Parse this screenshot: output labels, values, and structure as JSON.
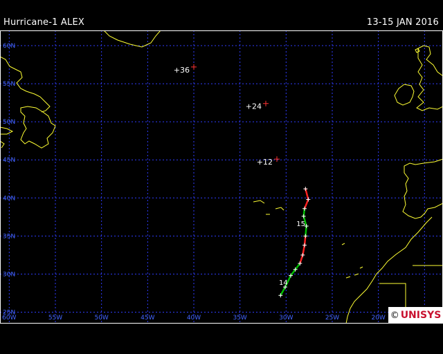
{
  "header": {
    "title": "Hurricane-1 ALEX",
    "dates": "13-15 JAN 2016"
  },
  "brand": {
    "copyright": "©",
    "name": "UNISYS"
  },
  "map": {
    "lon_range": [
      -61,
      -13
    ],
    "lat_range": [
      23.5,
      62
    ],
    "longitude_labels": [
      "60W",
      "55W",
      "50W",
      "45W",
      "40W",
      "35W",
      "30W",
      "25W",
      "20W",
      "15W"
    ],
    "latitude_labels": [
      "60N",
      "55N",
      "50N",
      "45N",
      "40N",
      "35N",
      "30N",
      "25N"
    ],
    "grid": true,
    "colors": {
      "grid": "#2f3cff",
      "coast": "#ffff33",
      "track_hurricane": "#00c000",
      "track_storm": "#ff2020",
      "forecast_marker": "#ff3333",
      "text": "#ffffff",
      "axis_label": "#4466ff"
    }
  },
  "track": [
    {
      "lon": -30.6,
      "lat": 27.2,
      "cat": "hurricane"
    },
    {
      "lon": -30.1,
      "lat": 28.3,
      "cat": "hurricane"
    },
    {
      "lon": -29.5,
      "lat": 29.8,
      "cat": "hurricane"
    },
    {
      "lon": -29.0,
      "lat": 30.6,
      "cat": "hurricane"
    },
    {
      "lon": -28.5,
      "lat": 31.4,
      "cat": "storm"
    },
    {
      "lon": -28.2,
      "lat": 32.5,
      "cat": "storm"
    },
    {
      "lon": -28.0,
      "lat": 33.8,
      "cat": "storm"
    },
    {
      "lon": -27.9,
      "lat": 35.0,
      "cat": "hurricane"
    },
    {
      "lon": -27.8,
      "lat": 36.3,
      "cat": "hurricane"
    },
    {
      "lon": -28.1,
      "lat": 37.6,
      "cat": "hurricane"
    },
    {
      "lon": -28.0,
      "lat": 38.6,
      "cat": "storm"
    },
    {
      "lon": -27.6,
      "lat": 39.8,
      "cat": "storm"
    },
    {
      "lon": -27.9,
      "lat": 41.2,
      "cat": "storm"
    }
  ],
  "day_labels": [
    {
      "text": "14",
      "lon": -30.3,
      "lat": 28.6
    },
    {
      "text": "15",
      "lon": -28.4,
      "lat": 36.3
    }
  ],
  "forecast_points": [
    {
      "label": "+12",
      "lon": -31.0,
      "lat": 45.1
    },
    {
      "label": "+24",
      "lon": -32.2,
      "lat": 52.4
    },
    {
      "label": "+36",
      "lon": -40.0,
      "lat": 57.2
    }
  ]
}
